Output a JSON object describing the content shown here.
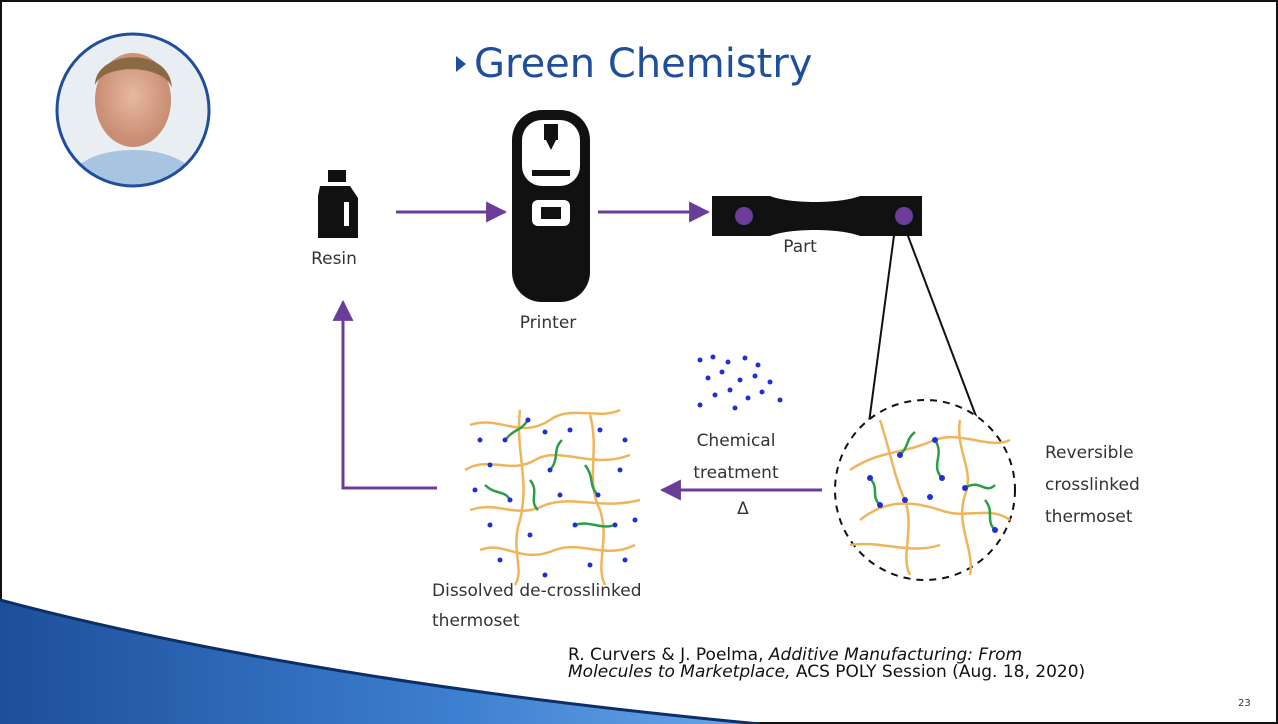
{
  "header": {
    "title": "Green Chemistry"
  },
  "diagram": {
    "resin": "Resin",
    "printer": "Printer",
    "part": "Part",
    "treatment": {
      "lines": [
        "Chemical",
        "treatment"
      ],
      "heat": "Δ"
    },
    "reversible": {
      "lines": [
        "Reversible",
        "crosslinked",
        "thermoset"
      ]
    },
    "dissolved": {
      "lines": [
        "Dissolved de-crosslinked",
        "thermoset"
      ]
    }
  },
  "citation": {
    "line1": {
      "plain": "R. Curvers & J. Poelma, ",
      "italic": "Additive Manufacturing: From"
    },
    "line2": {
      "italic": "Molecules to Marketplace,",
      "plain": " ACS POLY Session (Aug. 18, 2020)"
    }
  },
  "page_number": "23"
}
